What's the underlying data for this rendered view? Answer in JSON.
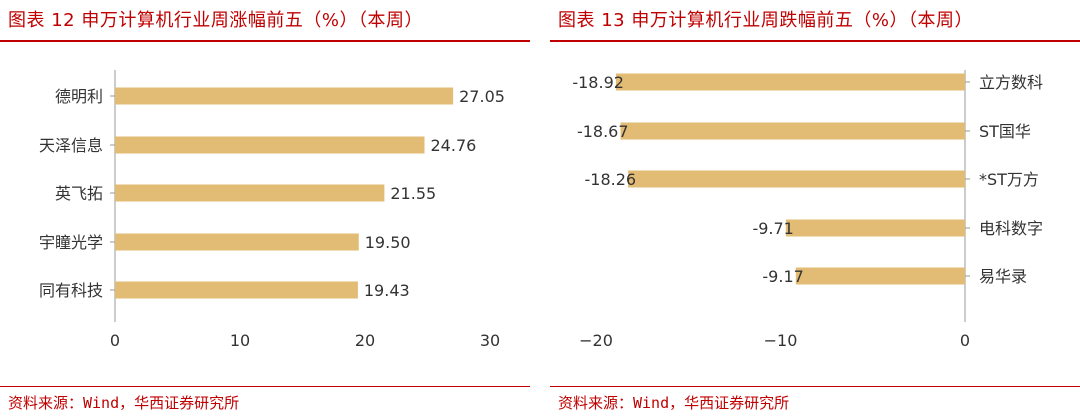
{
  "colors": {
    "accent": "#c00000",
    "bar": "#e2bb74",
    "text": "#333333",
    "axis": "#999999"
  },
  "left": {
    "title": "图表 12 申万计算机行业周涨幅前五（%）（本周）",
    "source": "资料来源：Wind，华西证券研究所"
  },
  "right": {
    "title": "图表 13 申万计算机行业周跌幅前五（%）（本周）",
    "source": "资料来源：Wind，华西证券研究所"
  },
  "chart_data": [
    {
      "type": "bar",
      "orientation": "horizontal",
      "title": "图表 12 申万计算机行业周涨幅前五（%）（本周）",
      "categories": [
        "德明利",
        "天泽信息",
        "英飞拓",
        "宇瞳光学",
        "同有科技"
      ],
      "values": [
        27.05,
        24.76,
        21.55,
        19.5,
        19.43
      ],
      "value_labels": [
        "27.05",
        "24.76",
        "21.55",
        "19.50",
        "19.43"
      ],
      "xlim": [
        0,
        30
      ],
      "xticks": [
        0,
        10,
        20,
        30
      ],
      "grid": false,
      "color": "#e2bb74"
    },
    {
      "type": "bar",
      "orientation": "horizontal",
      "title": "图表 13 申万计算机行业周跌幅前五（%）（本周）",
      "categories": [
        "立方数科",
        "ST国华",
        "*ST万方",
        "电科数字",
        "易华录"
      ],
      "values": [
        -18.92,
        -18.67,
        -18.26,
        -9.71,
        -9.17
      ],
      "value_labels": [
        "-18.92",
        "-18.67",
        "-18.26",
        "-9.71",
        "-9.17"
      ],
      "xlim": [
        -20,
        0
      ],
      "xticks": [
        -20,
        -10,
        0
      ],
      "xtick_labels": [
        "−20",
        "−10",
        "0"
      ],
      "category_side": "right",
      "grid": false,
      "color": "#e2bb74"
    }
  ]
}
